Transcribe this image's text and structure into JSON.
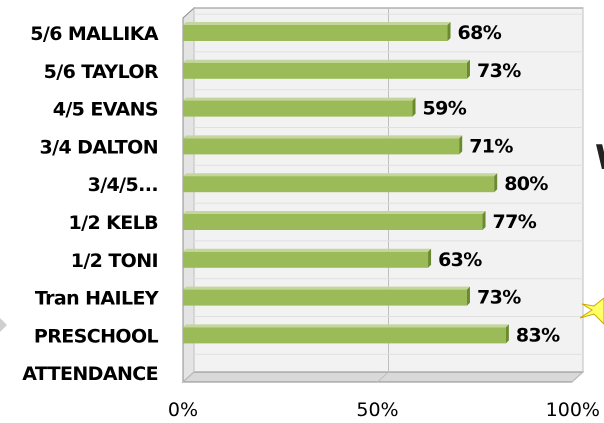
{
  "colors": {
    "bar_face": "#9bbb59",
    "bar_top": "#c3d69b",
    "bar_side": "#6b8a2e",
    "plot_bg": "#f2f2f2",
    "grid": "#bfbfbf",
    "wall_edge": "#8c8c8c"
  },
  "chart_data": {
    "type": "bar",
    "orientation": "horizontal",
    "style": "3d-clustered",
    "categories": [
      "5/6 MALLIKA",
      "5/6 TAYLOR",
      "4/5 EVANS",
      "3/4 DALTON",
      "3/4/5...",
      "1/2 KELB",
      "1/2 TONI",
      "Tran HAILEY",
      "PRESCHOOL",
      "ATTENDANCE"
    ],
    "values": [
      68,
      73,
      59,
      71,
      80,
      77,
      63,
      73,
      83,
      null
    ],
    "value_labels": [
      "68%",
      "73%",
      "59%",
      "71%",
      "80%",
      "77%",
      "63%",
      "73%",
      "83%",
      ""
    ],
    "xlim": [
      0,
      100
    ],
    "xticks": [
      0,
      50,
      100
    ],
    "xtick_labels": [
      "0%",
      "50%",
      "100%"
    ],
    "grid": true,
    "title": "",
    "xlabel": "",
    "ylabel": ""
  },
  "background_decorations": {
    "partial_text": "W"
  }
}
